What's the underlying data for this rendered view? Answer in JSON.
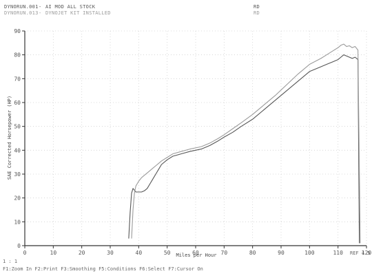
{
  "header": {
    "runs": [
      {
        "file": "DYNORUN.001",
        "desc": "AI MOD ALL STOCK",
        "tag": "RD",
        "color": "#555555"
      },
      {
        "file": "DYNORUN.013",
        "desc": "DYNOJET KIT INSTALLED",
        "tag": "RD",
        "color": "#9a9a9a"
      }
    ]
  },
  "footer": {
    "scale": "1 : 1",
    "ref": "REF 4.5",
    "menu": "F1:Zoom In  F2:Print  F3:Smoothing  F5:Conditions  F6:Select  F7:Cursor On"
  },
  "chart_data": {
    "type": "line",
    "xlabel": "Miles per Hour",
    "ylabel": "SAE Corrected Horsepower (HP)",
    "xlim": [
      0,
      120
    ],
    "ylim": [
      0,
      90
    ],
    "xticks": [
      0,
      10,
      20,
      30,
      40,
      50,
      60,
      70,
      80,
      90,
      100,
      110,
      120
    ],
    "yticks": [
      0,
      10,
      20,
      30,
      40,
      50,
      60,
      70,
      80,
      90
    ],
    "grid": true,
    "colors": {
      "grid": "#cfcfcf",
      "axis": "#333333",
      "run1": "#555555",
      "run2": "#9a9a9a"
    },
    "series": [
      {
        "name": "DYNORUN.001",
        "x": [
          36.5,
          37,
          37.5,
          38,
          39,
          40,
          41,
          42,
          43,
          44,
          45,
          46,
          47,
          48,
          50,
          52,
          55,
          58,
          60,
          62,
          65,
          68,
          70,
          73,
          76,
          80,
          84,
          88,
          92,
          96,
          100,
          104,
          106,
          108,
          110,
          111,
          112,
          113,
          114,
          115,
          116,
          117,
          117.5
        ],
        "y": [
          3,
          14,
          22,
          24,
          22.5,
          22.5,
          22.5,
          23,
          24,
          26,
          28,
          30,
          32,
          34,
          36,
          37.5,
          38.5,
          39.5,
          40,
          40.5,
          42,
          44,
          45.5,
          47.5,
          50,
          53,
          57,
          61,
          65,
          69,
          73,
          75,
          76,
          77,
          78,
          79,
          80,
          79.5,
          79,
          78.5,
          79,
          78,
          1
        ]
      },
      {
        "name": "DYNORUN.013",
        "x": [
          37.5,
          38,
          38.5,
          39,
          40,
          41,
          42,
          43,
          44,
          45,
          46,
          47,
          48,
          50,
          52,
          55,
          58,
          60,
          62,
          65,
          68,
          70,
          73,
          76,
          80,
          84,
          88,
          92,
          96,
          100,
          104,
          106,
          108,
          110,
          111,
          112,
          113,
          114,
          115,
          116,
          117,
          117.8
        ],
        "y": [
          3,
          15,
          22,
          25,
          27,
          28.5,
          29.5,
          30.5,
          31.5,
          32.5,
          33.5,
          34.5,
          35.5,
          37,
          38.5,
          39.5,
          40.5,
          41,
          41.5,
          43,
          45,
          46.5,
          49,
          51.5,
          55,
          59,
          63,
          67.5,
          72,
          76,
          78.5,
          80,
          81.5,
          83,
          84,
          84.5,
          83.5,
          83.8,
          83,
          83.5,
          82,
          1
        ]
      }
    ]
  }
}
